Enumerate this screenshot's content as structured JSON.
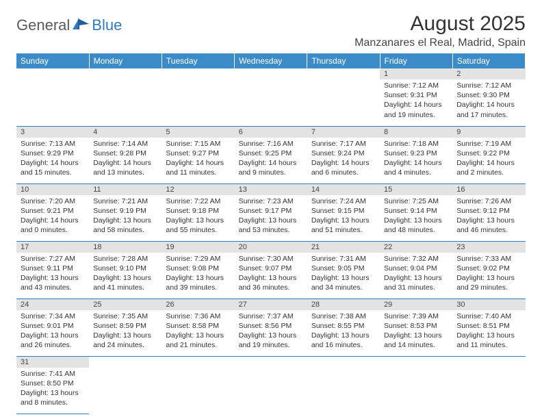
{
  "logo": {
    "text1": "General",
    "text2": "Blue"
  },
  "title": "August 2025",
  "location": "Manzanares el Real, Madrid, Spain",
  "colors": {
    "header_bg": "#3b8bc9",
    "header_text": "#ffffff",
    "daynum_bg": "#e3e3e3",
    "row_border": "#2f7bbf",
    "logo_gray": "#5a5a5a",
    "logo_blue": "#2f7bbf"
  },
  "weekdays": [
    "Sunday",
    "Monday",
    "Tuesday",
    "Wednesday",
    "Thursday",
    "Friday",
    "Saturday"
  ],
  "weeks": [
    [
      null,
      null,
      null,
      null,
      null,
      {
        "d": "1",
        "sr": "7:12 AM",
        "ss": "9:31 PM",
        "dl": "14 hours and 19 minutes."
      },
      {
        "d": "2",
        "sr": "7:12 AM",
        "ss": "9:30 PM",
        "dl": "14 hours and 17 minutes."
      }
    ],
    [
      {
        "d": "3",
        "sr": "7:13 AM",
        "ss": "9:29 PM",
        "dl": "14 hours and 15 minutes."
      },
      {
        "d": "4",
        "sr": "7:14 AM",
        "ss": "9:28 PM",
        "dl": "14 hours and 13 minutes."
      },
      {
        "d": "5",
        "sr": "7:15 AM",
        "ss": "9:27 PM",
        "dl": "14 hours and 11 minutes."
      },
      {
        "d": "6",
        "sr": "7:16 AM",
        "ss": "9:25 PM",
        "dl": "14 hours and 9 minutes."
      },
      {
        "d": "7",
        "sr": "7:17 AM",
        "ss": "9:24 PM",
        "dl": "14 hours and 6 minutes."
      },
      {
        "d": "8",
        "sr": "7:18 AM",
        "ss": "9:23 PM",
        "dl": "14 hours and 4 minutes."
      },
      {
        "d": "9",
        "sr": "7:19 AM",
        "ss": "9:22 PM",
        "dl": "14 hours and 2 minutes."
      }
    ],
    [
      {
        "d": "10",
        "sr": "7:20 AM",
        "ss": "9:21 PM",
        "dl": "14 hours and 0 minutes."
      },
      {
        "d": "11",
        "sr": "7:21 AM",
        "ss": "9:19 PM",
        "dl": "13 hours and 58 minutes."
      },
      {
        "d": "12",
        "sr": "7:22 AM",
        "ss": "9:18 PM",
        "dl": "13 hours and 55 minutes."
      },
      {
        "d": "13",
        "sr": "7:23 AM",
        "ss": "9:17 PM",
        "dl": "13 hours and 53 minutes."
      },
      {
        "d": "14",
        "sr": "7:24 AM",
        "ss": "9:15 PM",
        "dl": "13 hours and 51 minutes."
      },
      {
        "d": "15",
        "sr": "7:25 AM",
        "ss": "9:14 PM",
        "dl": "13 hours and 48 minutes."
      },
      {
        "d": "16",
        "sr": "7:26 AM",
        "ss": "9:12 PM",
        "dl": "13 hours and 46 minutes."
      }
    ],
    [
      {
        "d": "17",
        "sr": "7:27 AM",
        "ss": "9:11 PM",
        "dl": "13 hours and 43 minutes."
      },
      {
        "d": "18",
        "sr": "7:28 AM",
        "ss": "9:10 PM",
        "dl": "13 hours and 41 minutes."
      },
      {
        "d": "19",
        "sr": "7:29 AM",
        "ss": "9:08 PM",
        "dl": "13 hours and 39 minutes."
      },
      {
        "d": "20",
        "sr": "7:30 AM",
        "ss": "9:07 PM",
        "dl": "13 hours and 36 minutes."
      },
      {
        "d": "21",
        "sr": "7:31 AM",
        "ss": "9:05 PM",
        "dl": "13 hours and 34 minutes."
      },
      {
        "d": "22",
        "sr": "7:32 AM",
        "ss": "9:04 PM",
        "dl": "13 hours and 31 minutes."
      },
      {
        "d": "23",
        "sr": "7:33 AM",
        "ss": "9:02 PM",
        "dl": "13 hours and 29 minutes."
      }
    ],
    [
      {
        "d": "24",
        "sr": "7:34 AM",
        "ss": "9:01 PM",
        "dl": "13 hours and 26 minutes."
      },
      {
        "d": "25",
        "sr": "7:35 AM",
        "ss": "8:59 PM",
        "dl": "13 hours and 24 minutes."
      },
      {
        "d": "26",
        "sr": "7:36 AM",
        "ss": "8:58 PM",
        "dl": "13 hours and 21 minutes."
      },
      {
        "d": "27",
        "sr": "7:37 AM",
        "ss": "8:56 PM",
        "dl": "13 hours and 19 minutes."
      },
      {
        "d": "28",
        "sr": "7:38 AM",
        "ss": "8:55 PM",
        "dl": "13 hours and 16 minutes."
      },
      {
        "d": "29",
        "sr": "7:39 AM",
        "ss": "8:53 PM",
        "dl": "13 hours and 14 minutes."
      },
      {
        "d": "30",
        "sr": "7:40 AM",
        "ss": "8:51 PM",
        "dl": "13 hours and 11 minutes."
      }
    ],
    [
      {
        "d": "31",
        "sr": "7:41 AM",
        "ss": "8:50 PM",
        "dl": "13 hours and 8 minutes."
      },
      null,
      null,
      null,
      null,
      null,
      null
    ]
  ],
  "labels": {
    "sunrise": "Sunrise:",
    "sunset": "Sunset:",
    "daylight": "Daylight:"
  }
}
